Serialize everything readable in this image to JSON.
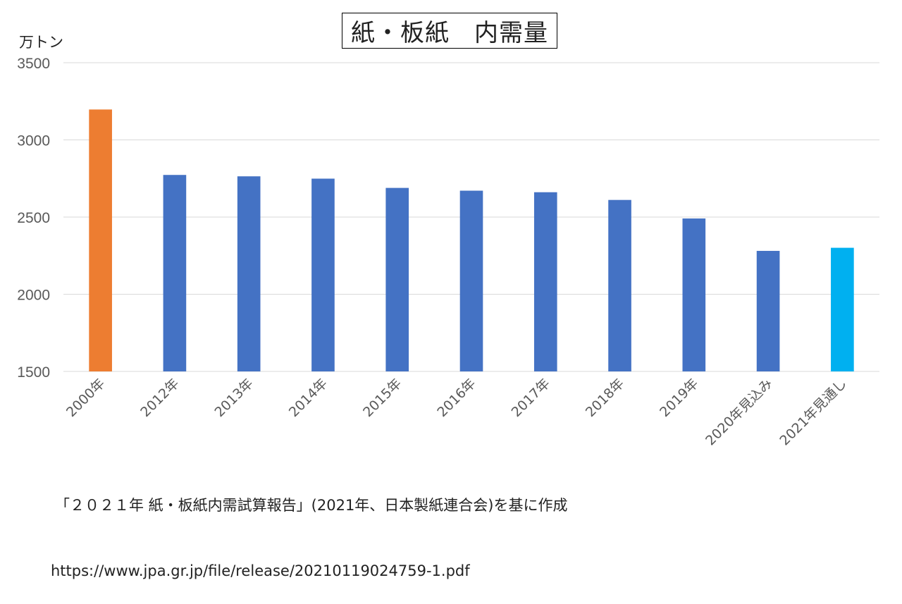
{
  "chart_data": {
    "type": "bar",
    "title": "紙・板紙　内需量",
    "ylabel": "万トン",
    "ylim": [
      1500,
      3500
    ],
    "yticks": [
      1500,
      2000,
      2500,
      3000,
      3500
    ],
    "grid": true,
    "categories": [
      "2000年",
      "2012年",
      "2013年",
      "2014年",
      "2015年",
      "2016年",
      "2017年",
      "2018年",
      "2019年",
      "2020年見込み",
      "2021年見通し"
    ],
    "values": [
      3197,
      2773,
      2764,
      2749,
      2689,
      2671,
      2661,
      2611,
      2491,
      2281,
      2301
    ],
    "colors": [
      "#ED7D31",
      "#4472C4",
      "#4472C4",
      "#4472C4",
      "#4472C4",
      "#4472C4",
      "#4472C4",
      "#4472C4",
      "#4472C4",
      "#4472C4",
      "#00B0F0"
    ]
  },
  "source": {
    "line1": "「２０２１年 紙・板紙内需試算報告」(2021年、日本製紙連合会)を基に作成",
    "line2": "https://www.jpa.gr.jp/file/release/20210119024759-1.pdf"
  }
}
